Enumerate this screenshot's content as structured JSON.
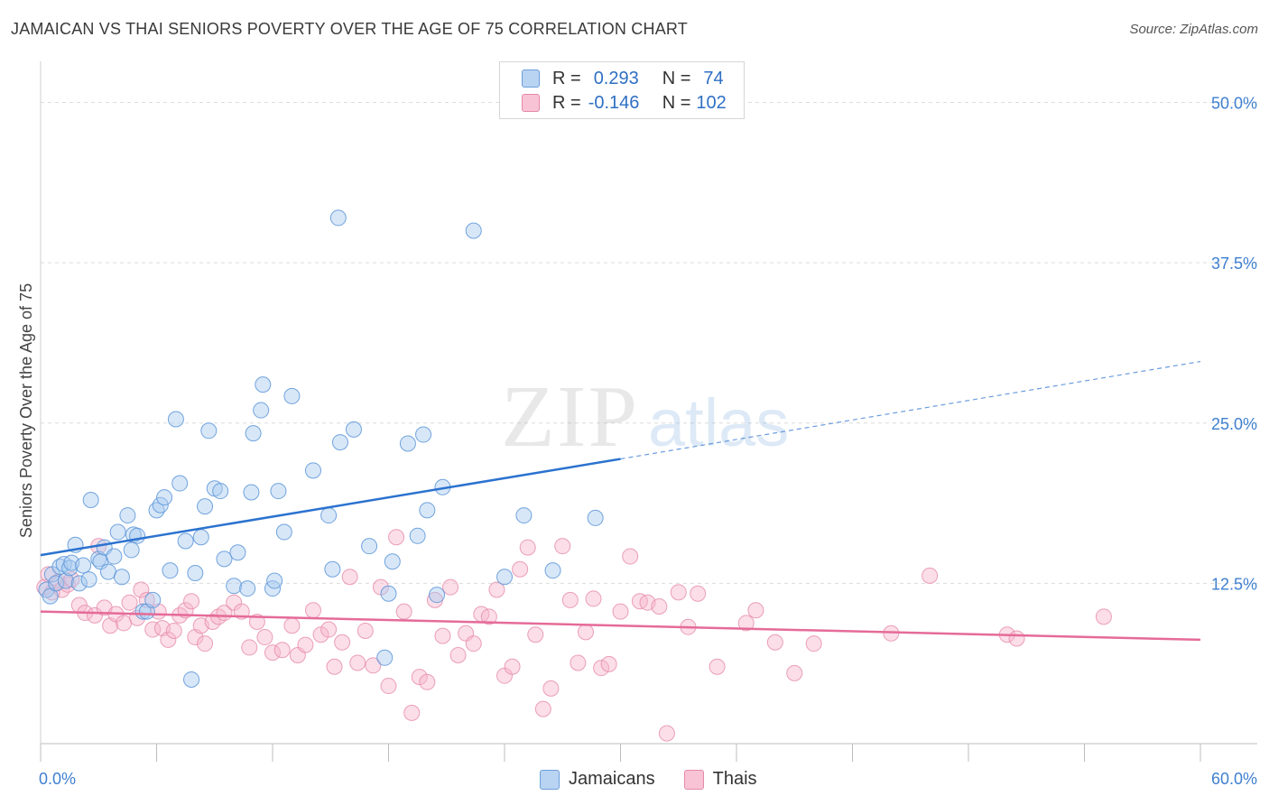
{
  "header": {
    "title": "JAMAICAN VS THAI SENIORS POVERTY OVER THE AGE OF 75 CORRELATION CHART",
    "source": "Source: ZipAtlas.com"
  },
  "watermark": {
    "zip": "ZIP",
    "atlas": "atlas"
  },
  "legend": {
    "jamaicans": {
      "r_label": "R =",
      "r_value": "0.293",
      "n_label": "N =",
      "n_value": "74"
    },
    "thais": {
      "r_label": "R =",
      "r_value": "-0.146",
      "n_label": "N =",
      "n_value": "102"
    }
  },
  "bottom_legend": {
    "jamaicans": "Jamaicans",
    "thais": "Thais"
  },
  "colors": {
    "jamaicans_fill": "#a9c9f0",
    "jamaicans_stroke": "#5b95d8",
    "jamaicans_line": "#2b72cf",
    "thais_fill": "#f6b6cb",
    "thais_stroke": "#e68aa9",
    "thais_line": "#e56b98",
    "axis_text": "#3f7fd0"
  },
  "chart_data": {
    "type": "scatter",
    "title": "JAMAICAN VS THAI SENIORS POVERTY OVER THE AGE OF 75 CORRELATION CHART",
    "xlabel": "",
    "ylabel": "Seniors Poverty Over the Age of 75",
    "xlim": [
      0,
      60
    ],
    "ylim": [
      0,
      52.5
    ],
    "x_tick_labels": [
      "0.0%",
      "60.0%"
    ],
    "y_ticks": [
      12.5,
      25.0,
      37.5,
      50.0
    ],
    "y_tick_labels": [
      "12.5%",
      "25.0%",
      "37.5%",
      "50.0%"
    ],
    "grid": true,
    "legend_position": "top-center",
    "series": [
      {
        "name": "Jamaicans",
        "r": 0.293,
        "n": 74,
        "trend": {
          "x0": 0,
          "y0": 14.7,
          "x1": 30,
          "y1": 22.2,
          "dashed_to_x": 60,
          "dashed_to_y": 29.8
        },
        "points": [
          [
            0.3,
            12.0
          ],
          [
            0.5,
            11.5
          ],
          [
            0.6,
            13.2
          ],
          [
            0.8,
            12.5
          ],
          [
            1.0,
            13.8
          ],
          [
            1.2,
            14.0
          ],
          [
            1.3,
            12.7
          ],
          [
            1.5,
            13.7
          ],
          [
            1.6,
            14.1
          ],
          [
            1.8,
            15.5
          ],
          [
            2.0,
            12.5
          ],
          [
            2.2,
            13.9
          ],
          [
            2.5,
            12.8
          ],
          [
            2.6,
            19.0
          ],
          [
            3.0,
            14.4
          ],
          [
            3.1,
            14.2
          ],
          [
            3.3,
            15.3
          ],
          [
            3.5,
            13.4
          ],
          [
            3.8,
            14.6
          ],
          [
            4.0,
            16.5
          ],
          [
            4.2,
            13.0
          ],
          [
            4.5,
            17.8
          ],
          [
            4.7,
            15.1
          ],
          [
            4.8,
            16.3
          ],
          [
            5.0,
            16.2
          ],
          [
            5.3,
            10.3
          ],
          [
            5.5,
            10.3
          ],
          [
            5.8,
            11.2
          ],
          [
            6.0,
            18.2
          ],
          [
            6.2,
            18.6
          ],
          [
            6.4,
            19.2
          ],
          [
            6.7,
            13.5
          ],
          [
            7.0,
            25.3
          ],
          [
            7.2,
            20.3
          ],
          [
            7.5,
            15.8
          ],
          [
            7.8,
            5.0
          ],
          [
            8.0,
            13.3
          ],
          [
            8.3,
            16.1
          ],
          [
            8.5,
            18.5
          ],
          [
            8.7,
            24.4
          ],
          [
            9.0,
            19.9
          ],
          [
            9.3,
            19.7
          ],
          [
            9.5,
            14.4
          ],
          [
            10.0,
            12.3
          ],
          [
            10.2,
            14.9
          ],
          [
            10.7,
            12.1
          ],
          [
            10.9,
            19.6
          ],
          [
            11.0,
            24.2
          ],
          [
            11.4,
            26.0
          ],
          [
            11.5,
            28.0
          ],
          [
            12.0,
            12.1
          ],
          [
            12.1,
            12.7
          ],
          [
            12.3,
            19.7
          ],
          [
            12.6,
            16.5
          ],
          [
            13.0,
            27.1
          ],
          [
            14.1,
            21.3
          ],
          [
            15.1,
            13.6
          ],
          [
            14.9,
            17.8
          ],
          [
            15.4,
            41.0
          ],
          [
            15.5,
            23.5
          ],
          [
            16.2,
            24.5
          ],
          [
            17.0,
            15.4
          ],
          [
            17.8,
            6.7
          ],
          [
            18.0,
            11.7
          ],
          [
            18.2,
            14.2
          ],
          [
            19.0,
            23.4
          ],
          [
            19.5,
            16.2
          ],
          [
            19.8,
            24.1
          ],
          [
            20.0,
            18.2
          ],
          [
            20.5,
            11.6
          ],
          [
            20.8,
            20.0
          ],
          [
            22.4,
            40.0
          ],
          [
            24.0,
            13.0
          ],
          [
            25.0,
            17.8
          ],
          [
            26.5,
            13.5
          ],
          [
            28.7,
            17.6
          ]
        ]
      },
      {
        "name": "Thais",
        "r": -0.146,
        "n": 102,
        "trend": {
          "x0": 0,
          "y0": 10.3,
          "x1": 60,
          "y1": 8.1
        },
        "points": [
          [
            0.2,
            12.2
          ],
          [
            0.4,
            13.2
          ],
          [
            0.6,
            11.8
          ],
          [
            0.9,
            12.6
          ],
          [
            1.1,
            12.0
          ],
          [
            1.4,
            12.4
          ],
          [
            1.6,
            12.8
          ],
          [
            2.0,
            10.8
          ],
          [
            2.3,
            10.2
          ],
          [
            2.8,
            10.0
          ],
          [
            3.0,
            15.4
          ],
          [
            3.3,
            10.6
          ],
          [
            3.6,
            9.2
          ],
          [
            3.9,
            10.1
          ],
          [
            4.3,
            9.4
          ],
          [
            4.6,
            11.0
          ],
          [
            5.0,
            9.8
          ],
          [
            5.2,
            12.0
          ],
          [
            5.5,
            11.2
          ],
          [
            5.8,
            8.9
          ],
          [
            6.1,
            10.3
          ],
          [
            6.3,
            9.0
          ],
          [
            6.6,
            8.1
          ],
          [
            6.9,
            8.8
          ],
          [
            7.2,
            10.0
          ],
          [
            7.5,
            10.4
          ],
          [
            7.8,
            11.1
          ],
          [
            8.0,
            8.3
          ],
          [
            8.3,
            9.2
          ],
          [
            8.5,
            7.8
          ],
          [
            8.9,
            9.5
          ],
          [
            9.2,
            9.9
          ],
          [
            9.5,
            10.2
          ],
          [
            10.0,
            11.0
          ],
          [
            10.4,
            10.3
          ],
          [
            10.8,
            7.5
          ],
          [
            11.2,
            9.5
          ],
          [
            11.6,
            8.3
          ],
          [
            12.0,
            7.1
          ],
          [
            12.5,
            7.3
          ],
          [
            13.0,
            9.2
          ],
          [
            13.3,
            6.9
          ],
          [
            13.7,
            7.7
          ],
          [
            14.1,
            10.4
          ],
          [
            14.5,
            8.5
          ],
          [
            14.9,
            8.9
          ],
          [
            15.2,
            6.0
          ],
          [
            15.6,
            7.9
          ],
          [
            16.0,
            13.0
          ],
          [
            16.4,
            6.3
          ],
          [
            16.8,
            8.8
          ],
          [
            17.2,
            6.1
          ],
          [
            17.6,
            12.2
          ],
          [
            18.0,
            4.5
          ],
          [
            18.4,
            16.1
          ],
          [
            18.8,
            10.3
          ],
          [
            19.2,
            2.4
          ],
          [
            19.6,
            5.2
          ],
          [
            20.0,
            4.8
          ],
          [
            20.4,
            11.2
          ],
          [
            20.8,
            8.4
          ],
          [
            21.2,
            12.2
          ],
          [
            21.6,
            6.9
          ],
          [
            22.0,
            8.6
          ],
          [
            22.4,
            7.8
          ],
          [
            22.8,
            10.1
          ],
          [
            23.2,
            9.9
          ],
          [
            23.6,
            12.0
          ],
          [
            24.0,
            5.3
          ],
          [
            24.4,
            6.0
          ],
          [
            24.8,
            13.6
          ],
          [
            25.2,
            15.3
          ],
          [
            25.6,
            8.5
          ],
          [
            26.0,
            2.7
          ],
          [
            26.4,
            4.3
          ],
          [
            27.0,
            15.4
          ],
          [
            27.4,
            11.2
          ],
          [
            27.8,
            6.3
          ],
          [
            28.2,
            8.7
          ],
          [
            28.6,
            11.3
          ],
          [
            29.0,
            5.9
          ],
          [
            29.4,
            6.2
          ],
          [
            30.0,
            10.3
          ],
          [
            30.5,
            14.6
          ],
          [
            31.0,
            11.1
          ],
          [
            31.4,
            11.0
          ],
          [
            32.0,
            10.7
          ],
          [
            32.4,
            0.8
          ],
          [
            33.0,
            11.8
          ],
          [
            33.5,
            9.1
          ],
          [
            34.0,
            11.7
          ],
          [
            35.0,
            6.0
          ],
          [
            36.5,
            9.4
          ],
          [
            37.0,
            10.4
          ],
          [
            38.0,
            7.9
          ],
          [
            39.0,
            5.5
          ],
          [
            40.0,
            7.8
          ],
          [
            44.0,
            8.6
          ],
          [
            46.0,
            13.1
          ],
          [
            50.0,
            8.5
          ],
          [
            50.5,
            8.2
          ],
          [
            55.0,
            9.9
          ]
        ]
      }
    ]
  }
}
